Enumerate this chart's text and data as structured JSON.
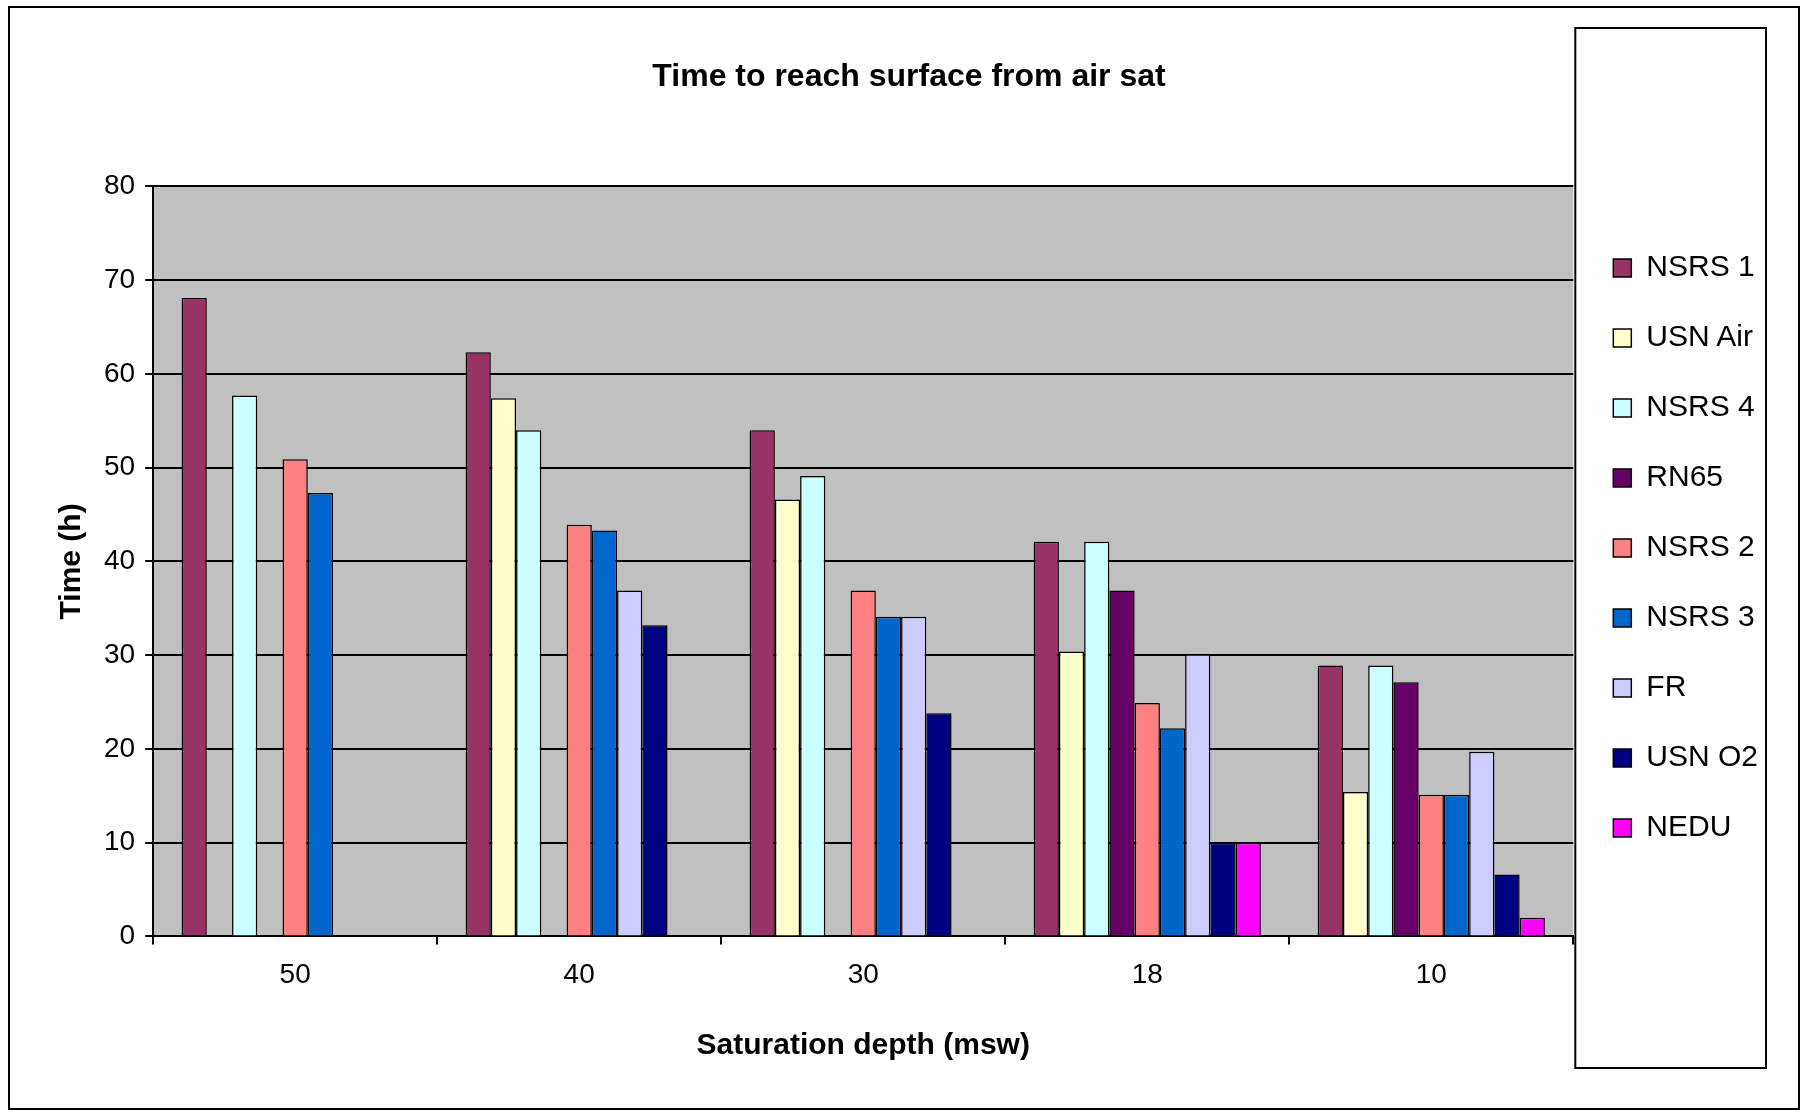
{
  "chart_data": {
    "type": "bar",
    "title": "Time to reach surface from air sat",
    "xlabel": "Saturation depth (msw)",
    "ylabel": "Time (h)",
    "categories": [
      "50",
      "40",
      "30",
      "18",
      "10"
    ],
    "series": [
      {
        "name": "NSRS 1",
        "color": "#993366",
        "values": [
          68.1,
          62.3,
          54.0,
          42.1,
          28.9
        ]
      },
      {
        "name": "USN Air",
        "color": "#ffffcc",
        "values": [
          null,
          57.4,
          46.6,
          30.4,
          15.4
        ]
      },
      {
        "name": "NSRS 4",
        "color": "#ccffff",
        "values": [
          57.7,
          54.0,
          49.1,
          42.1,
          28.9
        ]
      },
      {
        "name": "RN65",
        "color": "#660066",
        "values": [
          null,
          null,
          null,
          36.9,
          27.1
        ]
      },
      {
        "name": "NSRS 2",
        "color": "#ff8080",
        "values": [
          50.9,
          43.9,
          36.9,
          24.9,
          15.1
        ]
      },
      {
        "name": "NSRS 3",
        "color": "#0066cc",
        "values": [
          47.3,
          43.3,
          34.1,
          22.2,
          15.1
        ]
      },
      {
        "name": "FR",
        "color": "#ccccff",
        "values": [
          null,
          36.9,
          34.1,
          30.1,
          19.7
        ]
      },
      {
        "name": "USN O2",
        "color": "#000080",
        "values": [
          null,
          33.2,
          23.8,
          10.0,
          6.6
        ]
      },
      {
        "name": "NEDU",
        "color": "#ff00ff",
        "values": [
          null,
          null,
          null,
          10.0,
          2.0
        ]
      }
    ],
    "ylim": [
      0,
      80
    ],
    "yticks": [
      0,
      10,
      20,
      30,
      40,
      50,
      60,
      70,
      80
    ],
    "grid": "y",
    "legend": "right"
  }
}
